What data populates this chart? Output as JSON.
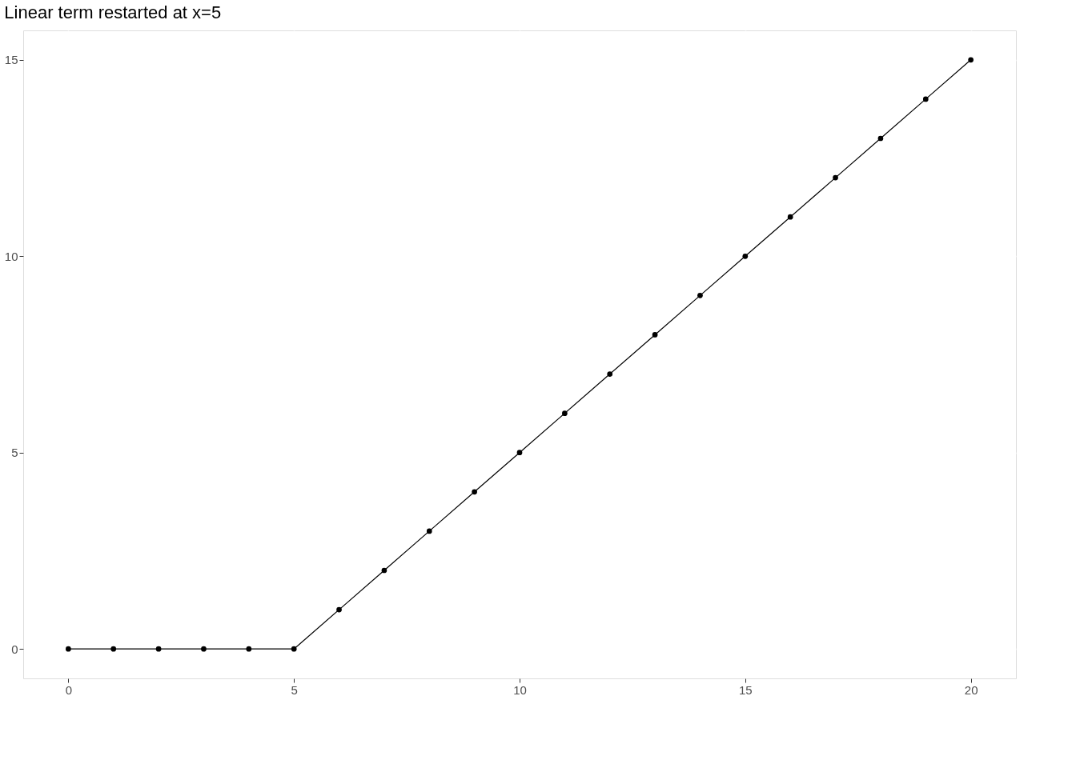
{
  "chart_data": {
    "type": "line",
    "title": "Linear term restarted at x=5",
    "x": [
      0,
      1,
      2,
      3,
      4,
      5,
      6,
      7,
      8,
      9,
      10,
      11,
      12,
      13,
      14,
      15,
      16,
      17,
      18,
      19,
      20
    ],
    "series": [
      {
        "color": "#000000",
        "values": [
          0,
          0,
          0,
          0,
          0,
          0,
          1,
          2,
          3,
          4,
          5,
          6,
          7,
          8,
          9,
          10,
          11,
          12,
          13,
          14,
          15
        ]
      }
    ],
    "xlim": [
      -1,
      21
    ],
    "ylim": [
      -0.75,
      15.75
    ],
    "xticks": [
      0,
      5,
      10,
      15,
      20
    ],
    "yticks": [
      0,
      5,
      10,
      15
    ],
    "grid": true,
    "marker": "circle",
    "line_style": "solid"
  }
}
